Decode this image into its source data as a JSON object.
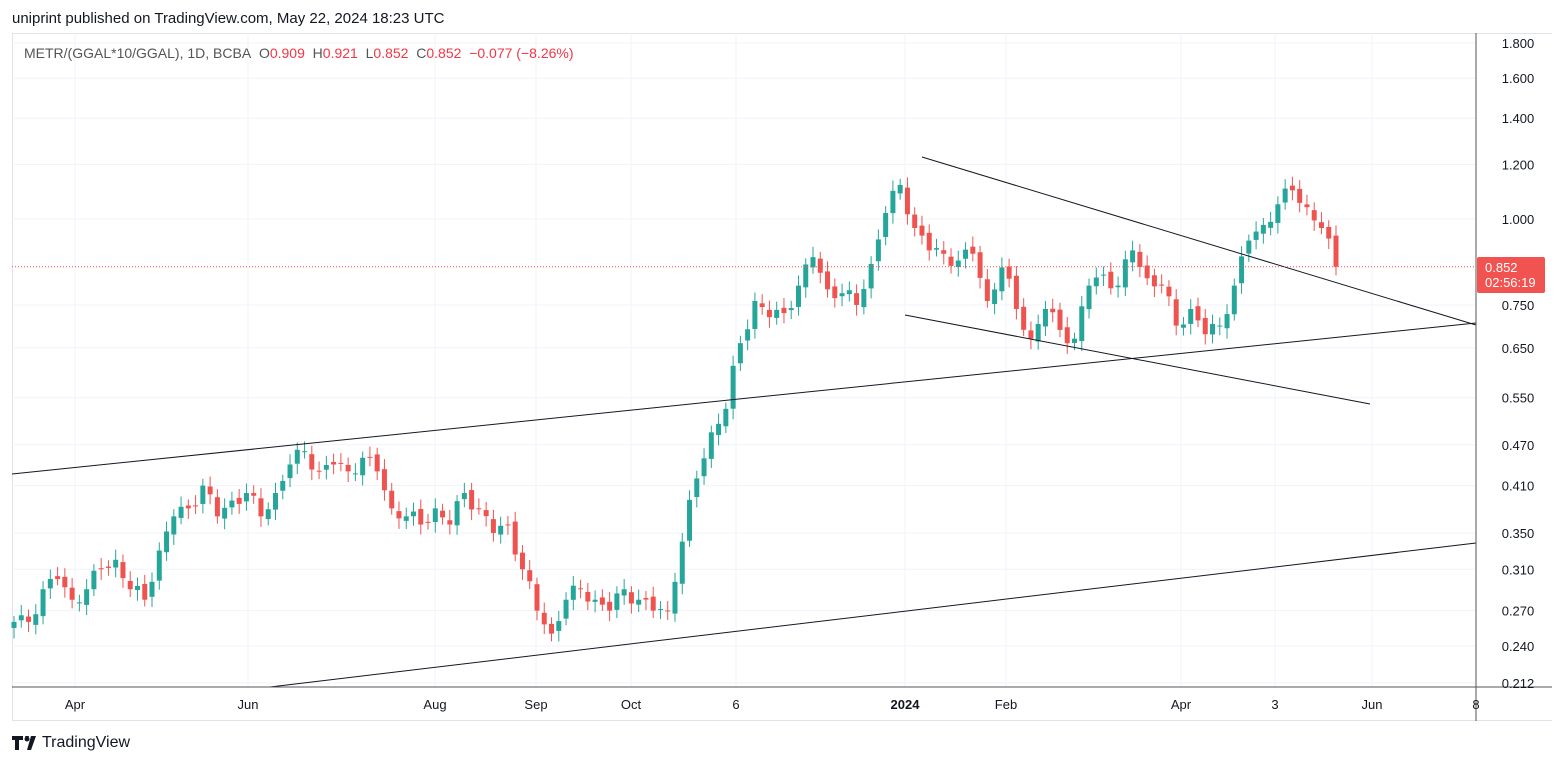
{
  "header": {
    "published": "uniprint published on TradingView.com, May 22, 2024 18:23 UTC"
  },
  "legend": {
    "symbol": "METR/(GGAL*10/GGAL), 1D, BCBA",
    "o_label": "O",
    "o": "0.909",
    "h_label": "H",
    "h": "0.921",
    "l_label": "L",
    "l": "0.852",
    "c_label": "C",
    "c": "0.852",
    "change": "−0.077 (−8.26%)"
  },
  "last_price": {
    "price": "0.852",
    "countdown": "02:56:19"
  },
  "brand": {
    "name": "TradingView"
  },
  "colors": {
    "up": "#26a69a",
    "down": "#ef5350",
    "grid": "#f0f3fa",
    "line": "#131722"
  },
  "chart_data": {
    "type": "candlestick",
    "title": "METR/(GGAL*10/GGAL), 1D, BCBA",
    "scale": "log",
    "ylim": [
      0.212,
      1.8
    ],
    "y_ticks": [
      "1.800",
      "1.600",
      "1.400",
      "1.200",
      "1.000",
      "0.750",
      "0.650",
      "0.550",
      "0.470",
      "0.410",
      "0.350",
      "0.310",
      "0.270",
      "0.240",
      "0.212"
    ],
    "x_ticks": [
      "Apr",
      "Jun",
      "Aug",
      "Sep",
      "Oct",
      "6",
      "2024",
      "Feb",
      "Apr",
      "3",
      "Jun",
      "8"
    ],
    "closes": [
      0.26,
      0.26,
      0.29,
      0.3,
      0.28,
      0.29,
      0.31,
      0.32,
      0.29,
      0.28,
      0.33,
      0.37,
      0.38,
      0.41,
      0.37,
      0.39,
      0.4,
      0.37,
      0.4,
      0.44,
      0.46,
      0.43,
      0.44,
      0.43,
      0.45,
      0.43,
      0.38,
      0.37,
      0.36,
      0.38,
      0.36,
      0.4,
      0.38,
      0.35,
      0.36,
      0.31,
      0.27,
      0.25,
      0.28,
      0.29,
      0.28,
      0.27,
      0.29,
      0.28,
      0.27,
      0.27,
      0.34,
      0.42,
      0.49,
      0.53,
      0.66,
      0.76,
      0.72,
      0.73,
      0.8,
      0.88,
      0.79,
      0.78,
      0.75,
      0.86,
      1.02,
      1.12,
      0.97,
      0.9,
      0.89,
      0.87,
      0.89,
      0.76,
      0.85,
      0.74,
      0.67,
      0.74,
      0.69,
      0.67,
      0.8,
      0.83,
      0.8,
      0.9,
      0.82,
      0.8,
      0.7,
      0.74,
      0.68,
      0.7,
      0.8,
      0.93,
      0.98,
      1.05,
      1.1,
      1.04,
      0.97,
      0.852
    ],
    "last_close": 0.852
  }
}
